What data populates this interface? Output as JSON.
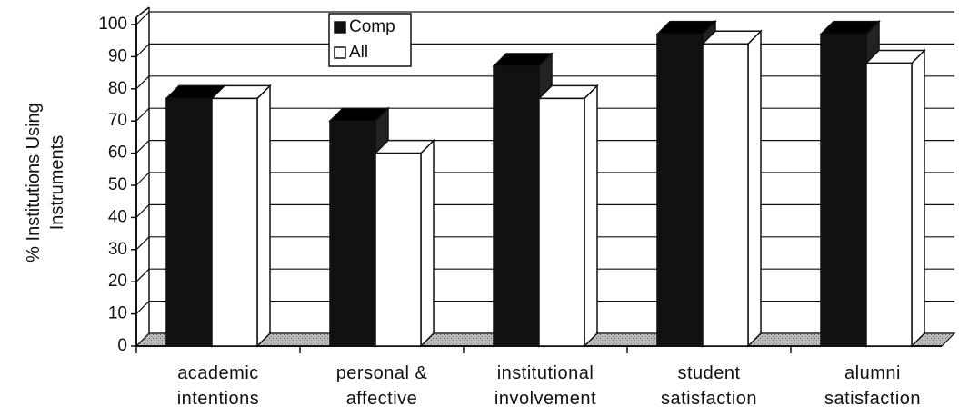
{
  "chart_data": {
    "type": "bar3d",
    "y_label": "% Institutions Using Instruments",
    "categories": [
      "academic intentions",
      "personal & affective",
      "institutional involvement",
      "student satisfaction",
      "alumni satisfaction"
    ],
    "series": [
      {
        "name": "Comp",
        "color": "#111111",
        "values": [
          77,
          70,
          87,
          97,
          97
        ]
      },
      {
        "name": "All",
        "color": "#ffffff",
        "values": [
          77,
          60,
          77,
          94,
          88
        ]
      }
    ],
    "ylim": [
      0,
      100
    ],
    "yticks": [
      0,
      10,
      20,
      30,
      40,
      50,
      60,
      70,
      80,
      90,
      100
    ],
    "grid": true
  }
}
